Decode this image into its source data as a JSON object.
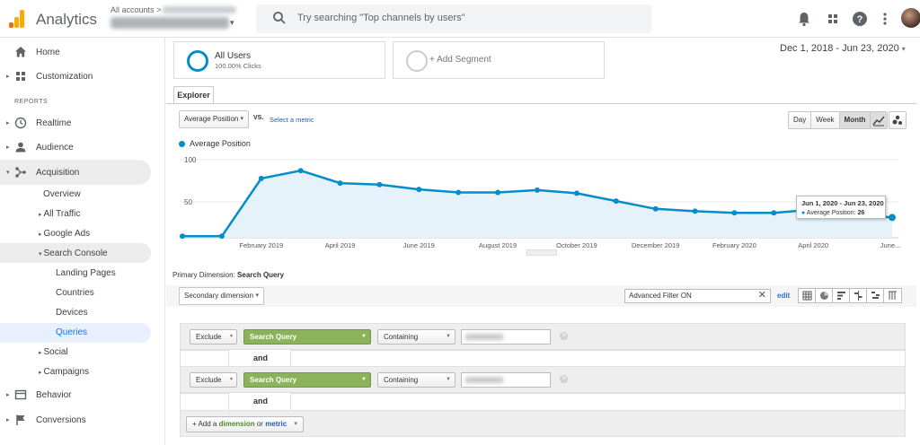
{
  "header": {
    "app_title": "Analytics",
    "account_path": "All accounts >",
    "search_placeholder": "Try searching \"Top channels by users\""
  },
  "sidebar": {
    "home": "Home",
    "customization": "Customization",
    "reports_header": "REPORTS",
    "realtime": "Realtime",
    "audience": "Audience",
    "acquisition": "Acquisition",
    "acq_items": {
      "overview": "Overview",
      "all_traffic": "All Traffic",
      "google_ads": "Google Ads",
      "search_console": "Search Console",
      "landing_pages": "Landing Pages",
      "countries": "Countries",
      "devices": "Devices",
      "queries": "Queries",
      "social": "Social",
      "campaigns": "Campaigns"
    },
    "behavior": "Behavior",
    "conversions": "Conversions"
  },
  "segments": {
    "all_users": "All Users",
    "all_users_sub": "100.00% Clicks",
    "add_segment": "+ Add Segment"
  },
  "date_range": "Dec 1, 2018 - Jun 23, 2020",
  "explorer": {
    "tab": "Explorer",
    "metric": "Average Position",
    "vs": "VS.",
    "select_metric": "Select a metric",
    "periods": [
      "Day",
      "Week",
      "Month"
    ],
    "active_period": "Month"
  },
  "chart_data": {
    "type": "area",
    "series": [
      {
        "name": "Average Position",
        "color": "#058dc7",
        "x": [
          "Dec 2018",
          "Jan 2019",
          "Feb 2019",
          "Mar 2019",
          "Apr 2019",
          "May 2019",
          "Jun 2019",
          "Jul 2019",
          "Aug 2019",
          "Sep 2019",
          "Oct 2019",
          "Nov 2019",
          "Dec 2019",
          "Jan 2020",
          "Feb 2020",
          "Mar 2020",
          "Apr 2020",
          "May 2020",
          "Jun 2020"
        ],
        "values": [
          2,
          2,
          76,
          86,
          70,
          68,
          62,
          58,
          58,
          61,
          57,
          47,
          37,
          34,
          32,
          32,
          36,
          30,
          26
        ]
      }
    ],
    "ylim": [
      0,
      110
    ],
    "y_ticks": [
      "100",
      "50"
    ],
    "x_tick_labels": [
      "February 2019",
      "April 2019",
      "June 2019",
      "August 2019",
      "October 2019",
      "December 2019",
      "February 2020",
      "April 2020",
      "June..."
    ],
    "tooltip": {
      "title": "Jun 1, 2020 - Jun 23, 2020",
      "label": "Average Position:",
      "value": "26"
    }
  },
  "table": {
    "primary_dimension_label": "Primary Dimension:",
    "primary_dimension_value": "Search Query",
    "secondary_dimension": "Secondary dimension",
    "advanced_filter": "Advanced Filter ON",
    "edit": "edit"
  },
  "filters": {
    "rows": [
      {
        "mode": "Exclude",
        "dimension": "Search Query",
        "match": "Containing"
      },
      {
        "mode": "Exclude",
        "dimension": "Search Query",
        "match": "Containing"
      }
    ],
    "and_label": "and",
    "add_prefix": "+ Add a",
    "add_dimension": "dimension",
    "add_or": "or",
    "add_metric": "metric"
  }
}
